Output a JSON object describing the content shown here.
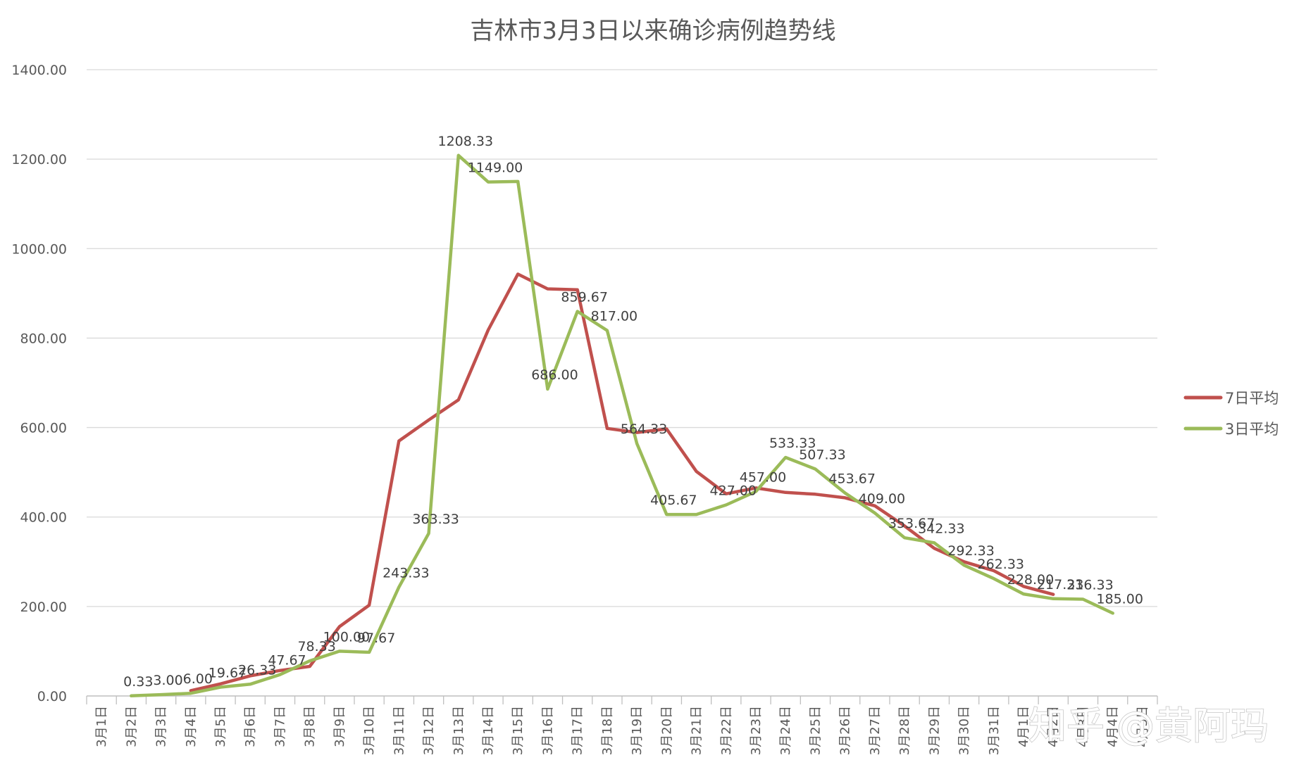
{
  "colors": {
    "avg7": "#c0504d",
    "avg3": "#9bbb59",
    "grid": "#d9d9d9",
    "axis": "#bfbfbf",
    "text": "#595959"
  },
  "watermark": {
    "text": "知乎 @黄阿玛"
  },
  "chart_data": {
    "type": "line",
    "title": "吉林市3月3日以来确诊病例趋势线",
    "xlabel": "",
    "ylabel": "",
    "ylim": [
      0,
      1400
    ],
    "yticks": [
      "0.00",
      "200.00",
      "400.00",
      "600.00",
      "800.00",
      "1000.00",
      "1200.00",
      "1400.00"
    ],
    "grid": true,
    "legend_position": "right",
    "categories": [
      "3月1日",
      "3月2日",
      "3月3日",
      "3月4日",
      "3月5日",
      "3月6日",
      "3月7日",
      "3月8日",
      "3月9日",
      "3月10日",
      "3月11日",
      "3月12日",
      "3月13日",
      "3月14日",
      "3月15日",
      "3月16日",
      "3月17日",
      "3月18日",
      "3月19日",
      "3月20日",
      "3月21日",
      "3月22日",
      "3月23日",
      "3月24日",
      "3月25日",
      "3月26日",
      "3月27日",
      "3月28日",
      "3月29日",
      "3月30日",
      "3月31日",
      "4月1日",
      "4月2日",
      "4月3日",
      "4月4日",
      "4月5日"
    ],
    "series": [
      {
        "name": "7日平均",
        "color": "#c0504d",
        "values": [
          null,
          null,
          null,
          12,
          27,
          45,
          57,
          66,
          155,
          203,
          570,
          617,
          662,
          818,
          943,
          910,
          908,
          598,
          589,
          597,
          502,
          452,
          465,
          455,
          451,
          443,
          425,
          380,
          330,
          300,
          280,
          245,
          227,
          null,
          null,
          null
        ]
      },
      {
        "name": "3日平均",
        "color": "#9bbb59",
        "labels": [
          "",
          "0.33",
          "3.00",
          "6.00",
          "19.67",
          "26.33",
          "47.67",
          "78.33",
          "100.00",
          "97.67",
          "243.33",
          "363.33",
          "1208.33",
          "1149.00",
          "",
          "686.00",
          "859.67",
          "817.00",
          "564.33",
          "405.67",
          "",
          "427.00",
          "457.00",
          "533.33",
          "507.33",
          "453.67",
          "409.00",
          "353.67",
          "342.33",
          "292.33",
          "262.33",
          "228.00",
          "217.33",
          "216.33",
          "185.00",
          ""
        ],
        "values": [
          null,
          0.33,
          3.0,
          6.0,
          19.67,
          26.33,
          47.67,
          78.33,
          100.0,
          97.67,
          243.33,
          363.33,
          1208.33,
          1149.0,
          1150.0,
          686.0,
          859.67,
          817.0,
          564.33,
          405.67,
          405.67,
          427.0,
          457.0,
          533.33,
          507.33,
          453.67,
          409.0,
          353.67,
          342.33,
          292.33,
          262.33,
          228.0,
          217.33,
          216.33,
          185.0,
          null
        ]
      }
    ]
  }
}
